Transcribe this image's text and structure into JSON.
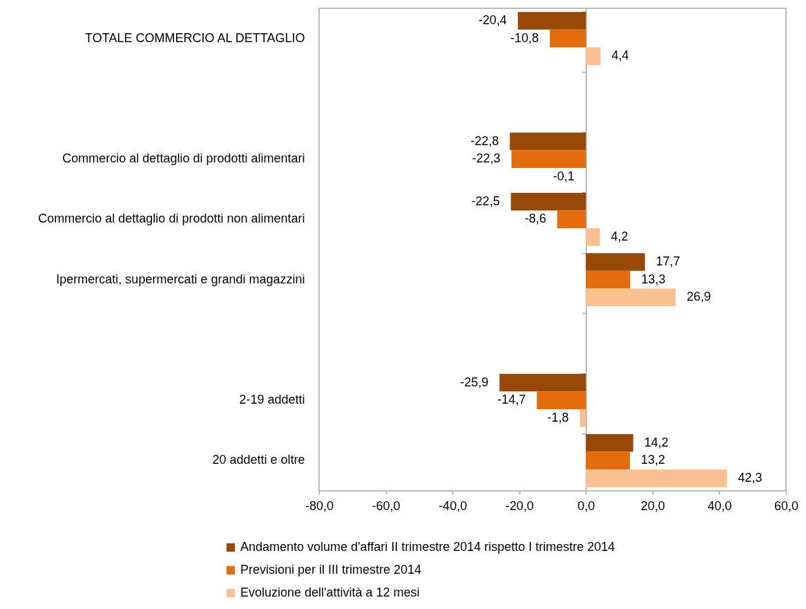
{
  "chart_data": {
    "type": "bar",
    "orientation": "horizontal",
    "categories": [
      "TOTALE COMMERCIO AL DETTAGLIO",
      null,
      "Commercio al dettaglio di prodotti alimentari",
      "Commercio al dettaglio di prodotti non alimentari",
      "Ipermercati, supermercati e grandi magazzini",
      null,
      "2-19 addetti",
      "20 addetti e oltre"
    ],
    "series": [
      {
        "name": "Andamento volume d'affari II trimestre 2014 rispetto I trimestre 2014",
        "color": "#984807",
        "values": [
          -20.4,
          null,
          -22.8,
          -22.5,
          17.7,
          null,
          -25.9,
          14.2
        ],
        "value_labels": [
          "-20,4",
          null,
          "-22,8",
          "-22,5",
          "17,7",
          null,
          "-25,9",
          "14,2"
        ]
      },
      {
        "name": "Previsioni per il III trimestre 2014",
        "color": "#e46c0a",
        "values": [
          -10.8,
          null,
          -22.3,
          -8.6,
          13.3,
          null,
          -14.7,
          13.2
        ],
        "value_labels": [
          "-10,8",
          null,
          "-22,3",
          "-8,6",
          "13,3",
          null,
          "-14,7",
          "13,2"
        ]
      },
      {
        "name": "Evoluzione dell'attività a 12 mesi",
        "color": "#fac090",
        "values": [
          4.4,
          null,
          -0.1,
          4.2,
          26.9,
          null,
          -1.8,
          42.3
        ],
        "value_labels": [
          "4,4",
          null,
          "-0,1",
          "4,2",
          "26,9",
          null,
          "-1,8",
          "42,3"
        ]
      }
    ],
    "xlim": [
      -80,
      60
    ],
    "xticks": [
      {
        "value": -80,
        "label": "-80,0"
      },
      {
        "value": -60,
        "label": "-60,0"
      },
      {
        "value": -40,
        "label": "-40,0"
      },
      {
        "value": -20,
        "label": "-20,0"
      },
      {
        "value": 0,
        "label": "0,0"
      },
      {
        "value": 20,
        "label": "20,0"
      },
      {
        "value": 40,
        "label": "40,0"
      },
      {
        "value": 60,
        "label": "60,0"
      }
    ],
    "legend": "bottom"
  }
}
